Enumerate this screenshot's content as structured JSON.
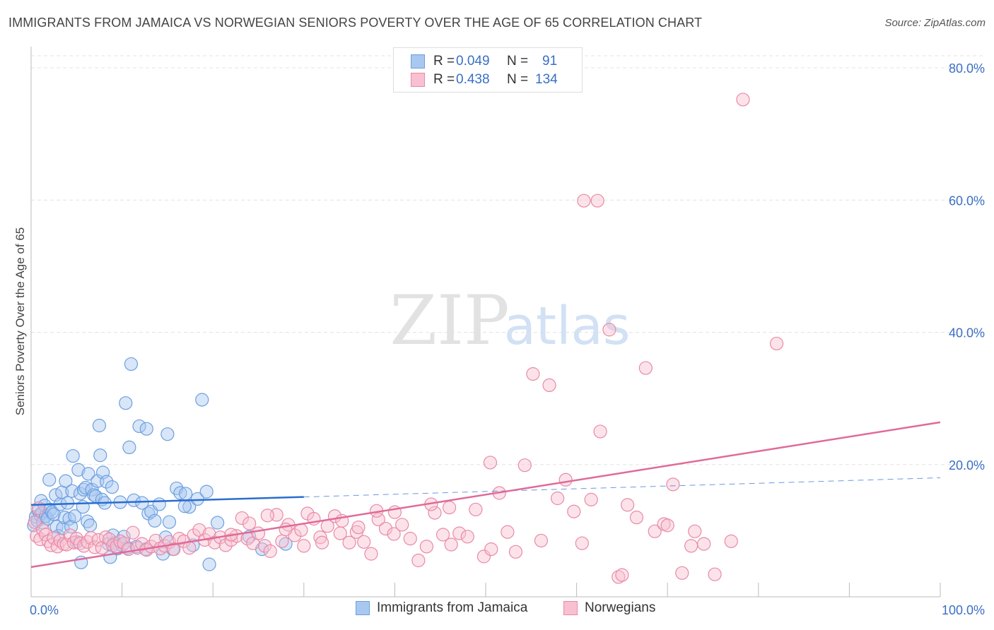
{
  "title": "IMMIGRANTS FROM JAMAICA VS NORWEGIAN SENIORS POVERTY OVER THE AGE OF 65 CORRELATION CHART",
  "source": "Source: ZipAtlas.com",
  "watermark": {
    "zip": "ZIP",
    "atlas": "atlas"
  },
  "legend_top": {
    "rows": [
      {
        "r_label": "R =",
        "r_value": "0.049",
        "n_label": "N =",
        "n_value": "91",
        "color": "#a8c8f0",
        "border": "#6c9fe0"
      },
      {
        "r_label": "R =",
        "r_value": "0.438",
        "n_label": "N =",
        "n_value": "134",
        "color": "#f8c0d0",
        "border": "#e88aa8"
      }
    ]
  },
  "chart_data": {
    "type": "scatter",
    "title": "IMMIGRANTS FROM JAMAICA VS NORWEGIAN SENIORS POVERTY OVER THE AGE OF 65 CORRELATION CHART",
    "xlabel": "",
    "ylabel": "Seniors Poverty Over the Age of 65",
    "xlim": [
      0,
      100
    ],
    "ylim": [
      0,
      85
    ],
    "x_tick_labels": [
      "0.0%",
      "100.0%"
    ],
    "y_ticks": [
      20,
      40,
      60,
      80
    ],
    "y_tick_labels": [
      "20.0%",
      "40.0%",
      "60.0%",
      "80.0%"
    ],
    "grid": true,
    "legend_position": "bottom",
    "colors": {
      "jamaica": "#6c9fe0",
      "jamaica_fill": "#a8c8f0",
      "norwegians": "#e88aa8",
      "norwegians_fill": "#f8c0d0",
      "jamaica_line": "#2a6dd0",
      "norwegians_line": "#e06a98"
    },
    "series": [
      {
        "name": "Immigrants from Jamaica",
        "trend": {
          "x": [
            0,
            30
          ],
          "y": [
            13.9,
            15.1
          ],
          "dashed_to": [
            100,
            18.0
          ]
        },
        "points": [
          [
            0.3,
            10.8
          ],
          [
            0.5,
            12.1
          ],
          [
            0.7,
            11.5
          ],
          [
            0.8,
            13.0
          ],
          [
            1.0,
            12.4
          ],
          [
            1.1,
            14.5
          ],
          [
            1.2,
            12.7
          ],
          [
            1.3,
            11.2
          ],
          [
            1.5,
            13.8
          ],
          [
            1.6,
            12.2
          ],
          [
            1.8,
            11.8
          ],
          [
            2.0,
            17.7
          ],
          [
            2.1,
            13.2
          ],
          [
            2.3,
            12.8
          ],
          [
            2.5,
            12.5
          ],
          [
            2.7,
            15.4
          ],
          [
            2.8,
            10.6
          ],
          [
            3.0,
            9.2
          ],
          [
            3.2,
            14.0
          ],
          [
            3.4,
            15.8
          ],
          [
            3.5,
            10.4
          ],
          [
            3.7,
            12.0
          ],
          [
            3.8,
            17.5
          ],
          [
            4.0,
            14.2
          ],
          [
            4.2,
            11.8
          ],
          [
            4.4,
            10.6
          ],
          [
            4.5,
            16.0
          ],
          [
            4.6,
            21.3
          ],
          [
            4.8,
            12.2
          ],
          [
            5.0,
            8.3
          ],
          [
            5.2,
            19.2
          ],
          [
            5.4,
            15.6
          ],
          [
            5.5,
            5.2
          ],
          [
            5.7,
            13.6
          ],
          [
            5.8,
            16.2
          ],
          [
            6.0,
            16.5
          ],
          [
            6.2,
            11.4
          ],
          [
            6.3,
            18.6
          ],
          [
            6.5,
            10.8
          ],
          [
            6.7,
            16.2
          ],
          [
            6.9,
            15.4
          ],
          [
            7.1,
            15.2
          ],
          [
            7.3,
            17.5
          ],
          [
            7.5,
            25.9
          ],
          [
            7.6,
            21.4
          ],
          [
            7.8,
            14.7
          ],
          [
            7.9,
            18.8
          ],
          [
            8.1,
            14.2
          ],
          [
            8.3,
            17.4
          ],
          [
            8.5,
            8.0
          ],
          [
            8.7,
            6.0
          ],
          [
            8.9,
            16.6
          ],
          [
            9.0,
            9.3
          ],
          [
            9.2,
            8.1
          ],
          [
            9.5,
            7.3
          ],
          [
            9.8,
            14.3
          ],
          [
            10.0,
            7.8
          ],
          [
            10.2,
            9.1
          ],
          [
            10.4,
            29.3
          ],
          [
            10.6,
            7.4
          ],
          [
            10.8,
            22.6
          ],
          [
            11.0,
            35.2
          ],
          [
            11.3,
            14.6
          ],
          [
            11.6,
            7.6
          ],
          [
            11.9,
            25.8
          ],
          [
            12.2,
            14.2
          ],
          [
            12.6,
            7.2
          ],
          [
            12.9,
            12.6
          ],
          [
            13.2,
            12.9
          ],
          [
            13.6,
            11.5
          ],
          [
            14.1,
            14.0
          ],
          [
            14.5,
            6.5
          ],
          [
            14.8,
            9.0
          ],
          [
            15.2,
            11.3
          ],
          [
            15.6,
            7.2
          ],
          [
            16.0,
            16.4
          ],
          [
            16.4,
            15.7
          ],
          [
            17.0,
            15.6
          ],
          [
            17.4,
            13.6
          ],
          [
            17.8,
            7.8
          ],
          [
            18.3,
            14.8
          ],
          [
            18.8,
            29.8
          ],
          [
            19.3,
            15.9
          ],
          [
            19.6,
            4.9
          ],
          [
            20.5,
            11.2
          ],
          [
            24.0,
            9.1
          ],
          [
            25.4,
            7.2
          ],
          [
            28.0,
            8.0
          ],
          [
            15.0,
            24.6
          ],
          [
            12.7,
            25.4
          ],
          [
            16.9,
            13.7
          ]
        ]
      },
      {
        "name": "Norwegians",
        "trend": {
          "x": [
            0,
            100
          ],
          "y": [
            4.5,
            26.4
          ]
        },
        "points": [
          [
            0.4,
            11.3
          ],
          [
            0.6,
            9.2
          ],
          [
            0.8,
            13.4
          ],
          [
            1.0,
            8.7
          ],
          [
            1.3,
            10.1
          ],
          [
            1.6,
            9.4
          ],
          [
            1.9,
            8.4
          ],
          [
            2.2,
            7.8
          ],
          [
            2.5,
            8.9
          ],
          [
            2.9,
            7.6
          ],
          [
            3.2,
            8.5
          ],
          [
            3.6,
            8.0
          ],
          [
            3.9,
            7.9
          ],
          [
            4.3,
            9.3
          ],
          [
            4.7,
            8.2
          ],
          [
            5.0,
            8.8
          ],
          [
            5.4,
            8.1
          ],
          [
            5.8,
            7.7
          ],
          [
            6.2,
            8.3
          ],
          [
            6.6,
            8.9
          ],
          [
            7.0,
            7.5
          ],
          [
            7.4,
            8.6
          ],
          [
            7.8,
            7.4
          ],
          [
            8.2,
            9.0
          ],
          [
            8.6,
            8.7
          ],
          [
            9.0,
            7.8
          ],
          [
            9.4,
            7.6
          ],
          [
            9.8,
            8.4
          ],
          [
            10.2,
            8.1
          ],
          [
            10.7,
            7.2
          ],
          [
            11.2,
            9.7
          ],
          [
            11.7,
            7.4
          ],
          [
            12.2,
            8.0
          ],
          [
            12.7,
            7.1
          ],
          [
            13.2,
            7.6
          ],
          [
            13.7,
            8.5
          ],
          [
            14.2,
            7.3
          ],
          [
            14.7,
            7.7
          ],
          [
            15.2,
            8.3
          ],
          [
            15.7,
            7.2
          ],
          [
            16.3,
            8.8
          ],
          [
            16.8,
            8.4
          ],
          [
            17.4,
            7.4
          ],
          [
            17.9,
            9.3
          ],
          [
            18.5,
            10.1
          ],
          [
            19.1,
            8.6
          ],
          [
            19.6,
            9.5
          ],
          [
            20.2,
            8.2
          ],
          [
            20.8,
            9.0
          ],
          [
            21.4,
            7.8
          ],
          [
            22.0,
            8.6
          ],
          [
            22.6,
            9.2
          ],
          [
            23.2,
            11.9
          ],
          [
            23.8,
            8.8
          ],
          [
            24.4,
            8.1
          ],
          [
            25.0,
            9.6
          ],
          [
            25.7,
            7.7
          ],
          [
            26.3,
            6.9
          ],
          [
            27.0,
            12.4
          ],
          [
            27.6,
            8.4
          ],
          [
            28.3,
            10.9
          ],
          [
            29.0,
            9.3
          ],
          [
            29.7,
            10.1
          ],
          [
            30.4,
            12.6
          ],
          [
            31.1,
            11.8
          ],
          [
            31.8,
            9.0
          ],
          [
            32.6,
            10.7
          ],
          [
            33.4,
            12.2
          ],
          [
            34.2,
            11.5
          ],
          [
            35.0,
            8.2
          ],
          [
            35.8,
            9.8
          ],
          [
            36.6,
            8.3
          ],
          [
            37.4,
            6.5
          ],
          [
            38.2,
            11.7
          ],
          [
            39.0,
            10.3
          ],
          [
            39.9,
            9.5
          ],
          [
            40.8,
            10.9
          ],
          [
            41.7,
            8.8
          ],
          [
            42.6,
            5.5
          ],
          [
            43.5,
            7.6
          ],
          [
            44.4,
            12.7
          ],
          [
            45.3,
            9.4
          ],
          [
            46.2,
            7.9
          ],
          [
            47.1,
            9.6
          ],
          [
            48.0,
            9.1
          ],
          [
            48.9,
            13.2
          ],
          [
            49.8,
            6.1
          ],
          [
            50.6,
            7.2
          ],
          [
            51.5,
            15.7
          ],
          [
            52.4,
            9.8
          ],
          [
            53.3,
            6.8
          ],
          [
            54.3,
            19.9
          ],
          [
            55.2,
            33.7
          ],
          [
            56.1,
            8.5
          ],
          [
            57.0,
            32.0
          ],
          [
            57.9,
            14.9
          ],
          [
            58.8,
            17.7
          ],
          [
            59.7,
            12.9
          ],
          [
            60.6,
            8.1
          ],
          [
            61.6,
            14.7
          ],
          [
            62.6,
            25.0
          ],
          [
            63.6,
            40.4
          ],
          [
            64.6,
            3.0
          ],
          [
            65.6,
            13.9
          ],
          [
            66.6,
            12.0
          ],
          [
            67.6,
            34.6
          ],
          [
            68.6,
            9.9
          ],
          [
            69.6,
            11.0
          ],
          [
            70.6,
            17.0
          ],
          [
            71.6,
            3.6
          ],
          [
            72.6,
            7.7
          ],
          [
            74.0,
            8.0
          ],
          [
            75.2,
            3.4
          ],
          [
            82.0,
            38.3
          ],
          [
            78.3,
            75.2
          ],
          [
            60.8,
            59.9
          ],
          [
            62.3,
            59.9
          ],
          [
            50.5,
            20.3
          ],
          [
            46.0,
            13.5
          ],
          [
            44.0,
            14.0
          ],
          [
            40.0,
            12.8
          ],
          [
            38.0,
            13.0
          ],
          [
            36.0,
            10.5
          ],
          [
            34.0,
            9.6
          ],
          [
            32.0,
            8.2
          ],
          [
            30.0,
            7.7
          ],
          [
            28.0,
            10.2
          ],
          [
            26.0,
            12.3
          ],
          [
            24.0,
            11.1
          ],
          [
            22.0,
            9.4
          ],
          [
            65.0,
            3.3
          ],
          [
            70.0,
            10.8
          ],
          [
            73.0,
            9.9
          ],
          [
            77.0,
            8.4
          ]
        ]
      }
    ]
  },
  "legend_bottom": [
    {
      "label": "Immigrants from Jamaica",
      "color": "#a8c8f0",
      "border": "#6c9fe0"
    },
    {
      "label": "Norwegians",
      "color": "#f8c0d0",
      "border": "#e88aa8"
    }
  ]
}
